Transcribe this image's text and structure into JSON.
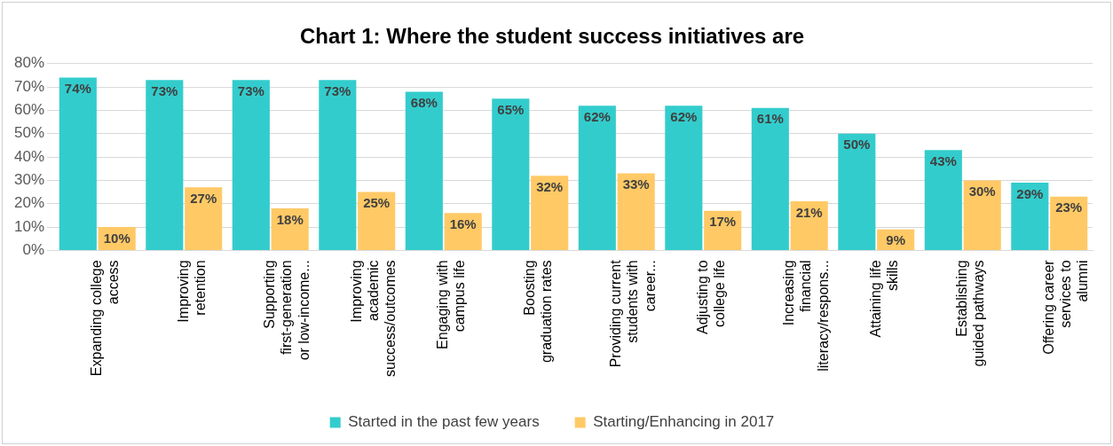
{
  "chart_data": {
    "type": "bar",
    "title": "Chart 1: Where the student success initiatives are",
    "categories": [
      "Expanding college access",
      "Improving retention",
      "Supporting first-generation or low-income...",
      "Improving academic success/outcomes",
      "Engaging with campus life",
      "Boosting graduation rates",
      "Providing current students with career...",
      "Adjusting to college life",
      "Increasing financial literacy/respons...",
      "Attaining life skills",
      "Establishing guided pathways",
      "Offering career services to alumni"
    ],
    "series": [
      {
        "name": "Started in the past few years",
        "color": "#33cccc",
        "values": [
          74,
          73,
          73,
          73,
          68,
          65,
          62,
          62,
          61,
          50,
          43,
          29
        ],
        "value_labels": [
          "74%",
          "73%",
          "73%",
          "73%",
          "68%",
          "65%",
          "62%",
          "62%",
          "61%",
          "50%",
          "43%",
          "29%"
        ]
      },
      {
        "name": "Starting/Enhancing in 2017",
        "color": "#ffc966",
        "values": [
          10,
          27,
          18,
          25,
          16,
          32,
          33,
          17,
          21,
          9,
          30,
          23
        ],
        "value_labels": [
          "10%",
          "27%",
          "18%",
          "25%",
          "16%",
          "32%",
          "33%",
          "17%",
          "21%",
          "9%",
          "30%",
          "23%"
        ]
      }
    ],
    "ylim": [
      0,
      80
    ],
    "yticks": [
      {
        "value": 0,
        "label": "0%"
      },
      {
        "value": 10,
        "label": "10%"
      },
      {
        "value": 20,
        "label": "20%"
      },
      {
        "value": 30,
        "label": "30%"
      },
      {
        "value": 40,
        "label": "40%"
      },
      {
        "value": 50,
        "label": "50%"
      },
      {
        "value": 60,
        "label": "60%"
      },
      {
        "value": 70,
        "label": "70%"
      },
      {
        "value": 80,
        "label": "80%"
      }
    ],
    "grid": "y",
    "legend": "bottom"
  }
}
